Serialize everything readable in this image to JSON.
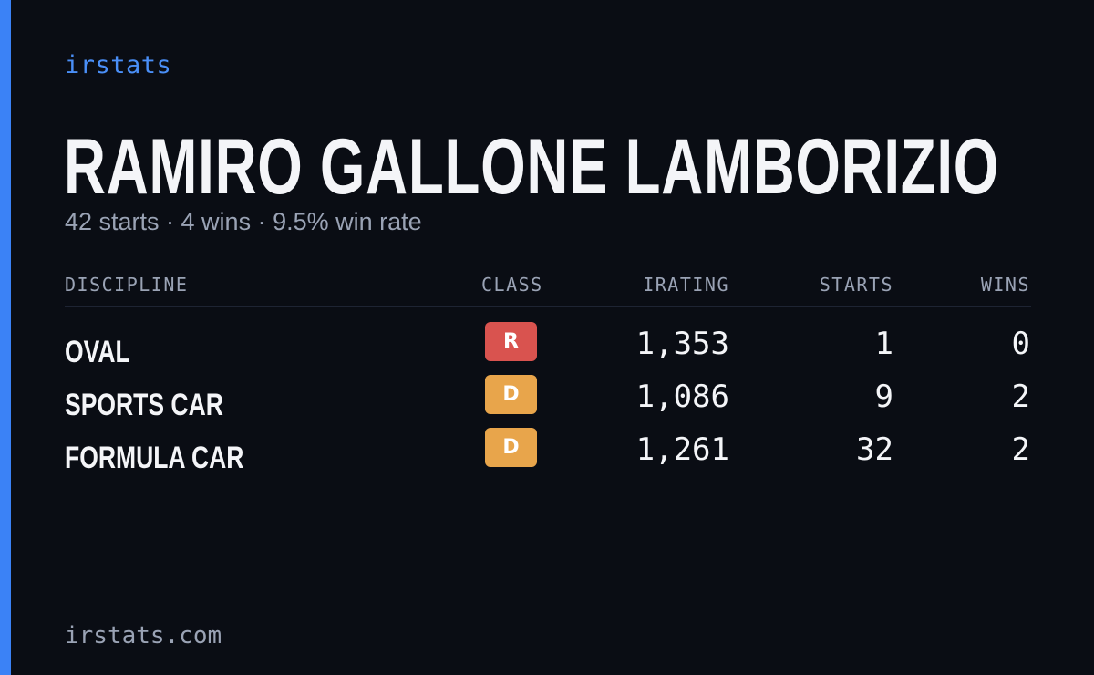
{
  "brand": "irstats",
  "driver_name": "RAMIRO GALLONE LAMBORIZIO",
  "summary": "42 starts · 4 wins · 9.5% win rate",
  "table": {
    "headers": {
      "discipline": "DISCIPLINE",
      "class": "CLASS",
      "irating": "IRATING",
      "starts": "STARTS",
      "wins": "WINS"
    },
    "rows": [
      {
        "discipline": "OVAL",
        "class": "R",
        "class_color": "#d9534f",
        "irating": "1,353",
        "starts": "1",
        "wins": "0"
      },
      {
        "discipline": "SPORTS CAR",
        "class": "D",
        "class_color": "#e8a54b",
        "irating": "1,086",
        "starts": "9",
        "wins": "2"
      },
      {
        "discipline": "FORMULA CAR",
        "class": "D",
        "class_color": "#e8a54b",
        "irating": "1,261",
        "starts": "32",
        "wins": "2"
      }
    ]
  },
  "footer": "irstats.com",
  "colors": {
    "background": "#0a0d14",
    "accent": "#3b82f6",
    "text_primary": "#f4f5f8",
    "text_muted": "#9aa3b5"
  }
}
